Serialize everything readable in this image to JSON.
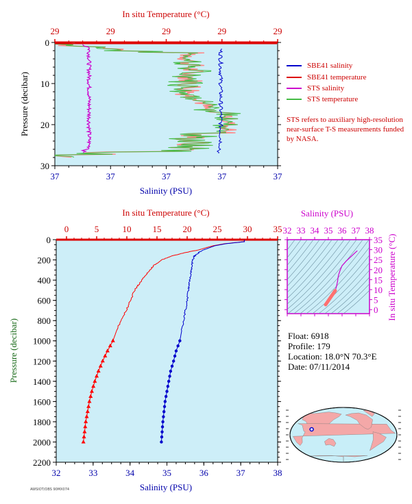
{
  "chart_data": [
    {
      "type": "line",
      "top_title": "In situ Temperature (°C)",
      "top_ticks": [
        "29",
        "29",
        "29",
        "29",
        "29"
      ],
      "xlabel": "Salinity (PSU)",
      "bottom_ticks": [
        "37",
        "37",
        "37",
        "37",
        "37"
      ],
      "ylabel": "Pressure (decibar)",
      "y_ticks": [
        0,
        10,
        20,
        30
      ],
      "ylim": [
        0,
        30
      ],
      "y_inverted": true,
      "series_names": [
        "SBE41 salinity",
        "SBE41 temperature",
        "STS salinity",
        "STS temperature"
      ],
      "colors": {
        "sbe_sal": "#0000cc",
        "sbe_temp": "#dd0000",
        "sts_sal": "#cc00cc",
        "sts_temp": "#44bb44",
        "sts_temp_fill": "#ff8888"
      },
      "note": "STS refers to auxiliary high-resolution near-surface T-S measurements funded by NASA."
    },
    {
      "type": "line",
      "top_title": "In situ Temperature (°C)",
      "temp_ticks": [
        0,
        5,
        10,
        15,
        20,
        25,
        30,
        35
      ],
      "temp_lim": [
        0,
        35
      ],
      "xlabel": "Salinity (PSU)",
      "sal_ticks": [
        32,
        33,
        34,
        35,
        36,
        37,
        38
      ],
      "sal_lim": [
        32,
        38
      ],
      "ylabel": "Pressure (decibar)",
      "y_ticks": [
        0,
        200,
        400,
        600,
        800,
        1000,
        1200,
        1400,
        1600,
        1800,
        2000,
        2200
      ],
      "ylim": [
        0,
        2200
      ],
      "y_inverted": true,
      "temperature": {
        "pressure": [
          0,
          20,
          40,
          60,
          80,
          100,
          130,
          160,
          200,
          250,
          300,
          350,
          400,
          450,
          500,
          600,
          700,
          800,
          900,
          1000,
          1100,
          1200,
          1300,
          1400,
          1500,
          1600,
          1700,
          1800,
          1900,
          2000
        ],
        "values": [
          29.5,
          29.4,
          26.2,
          24.3,
          23.1,
          22.0,
          19.5,
          17.5,
          15.8,
          14.6,
          13.8,
          13.1,
          12.5,
          11.9,
          11.3,
          10.6,
          9.9,
          9.0,
          8.3,
          7.7,
          6.8,
          6.0,
          5.3,
          4.7,
          4.2,
          3.8,
          3.5,
          3.2,
          3.0,
          2.8
        ]
      },
      "salinity": {
        "pressure": [
          0,
          20,
          40,
          60,
          80,
          100,
          130,
          160,
          200,
          250,
          300,
          350,
          400,
          450,
          500,
          600,
          700,
          800,
          900,
          1000,
          1100,
          1200,
          1300,
          1400,
          1500,
          1600,
          1700,
          1800,
          1900,
          2000
        ],
        "values": [
          37.1,
          37.1,
          36.6,
          36.3,
          36.15,
          36.0,
          35.85,
          35.75,
          35.7,
          35.68,
          35.66,
          35.64,
          35.62,
          35.6,
          35.58,
          35.55,
          35.5,
          35.45,
          35.4,
          35.35,
          35.25,
          35.18,
          35.1,
          35.05,
          35.0,
          34.95,
          34.92,
          34.89,
          34.87,
          34.85
        ]
      },
      "marker_start_pressure": 1000,
      "colors": {
        "temperature": "#ff0000",
        "salinity": "#0000cc"
      }
    },
    {
      "type": "scatter",
      "xlabel": "Salinity (PSU)",
      "x_ticks": [
        32,
        33,
        34,
        35,
        36,
        37,
        38
      ],
      "xlim": [
        32,
        38
      ],
      "ylabel": "In situ Temperature (°C)",
      "y_ticks": [
        0,
        5,
        10,
        15,
        20,
        25,
        30,
        35
      ],
      "ylim": [
        -2,
        35
      ],
      "color": "#cc00cc"
    }
  ],
  "float_info": {
    "float": "Float: 6918",
    "profile": "Profile: 179",
    "location": "Location: 18.0°N  70.3°E",
    "date": "Date: 07/11/2014"
  },
  "map": {
    "lat": 18.0,
    "lon": 70.3,
    "ocean_color": "#c8eef8",
    "land_color": "#f4a8a8"
  },
  "credit": "AWSIOT/OBS 90MX074"
}
